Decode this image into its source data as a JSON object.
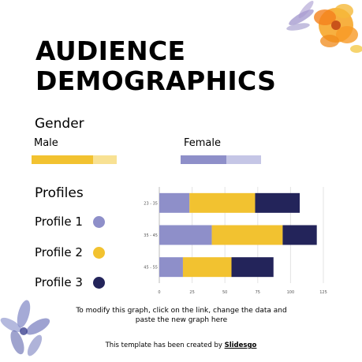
{
  "slide": {
    "title_line1": "AUDIENCE",
    "title_line2": "DEMOGRAPHICS",
    "gender_heading": "Gender",
    "male_label": "Male",
    "female_label": "Female",
    "profiles_heading": "Profiles",
    "note_line1": "To modify this graph, click on the link, change the data and",
    "note_line2": "paste the new graph here",
    "credit_prefix": "This template has been created by ",
    "credit_brand": "Slidesgo"
  },
  "gender": {
    "male_share": 0.72,
    "female_share": 0.57
  },
  "profiles": [
    {
      "label": "Profile 1",
      "color": "#8e8fc9"
    },
    {
      "label": "Profile 2",
      "color": "#f2c230"
    },
    {
      "label": "Profile 3",
      "color": "#23245a"
    }
  ],
  "colors": {
    "male_strong": "#f2c230",
    "male_light": "#f8e193",
    "female_strong": "#8e8fc9",
    "female_light": "#c5c6e6"
  },
  "chart_data": {
    "type": "bar",
    "orientation": "horizontal",
    "stacked": true,
    "categories": [
      "23 - 35",
      "35 - 45",
      "45 - 55"
    ],
    "series": [
      {
        "name": "Profile 1",
        "values": [
          23,
          40,
          18
        ]
      },
      {
        "name": "Profile 2",
        "values": [
          50,
          54,
          37
        ]
      },
      {
        "name": "Profile 3",
        "values": [
          34,
          26,
          32
        ]
      }
    ],
    "x_ticks": [
      "0",
      "25",
      "50",
      "75",
      "100",
      "125"
    ],
    "xlim": [
      0,
      125
    ],
    "grid": true
  }
}
